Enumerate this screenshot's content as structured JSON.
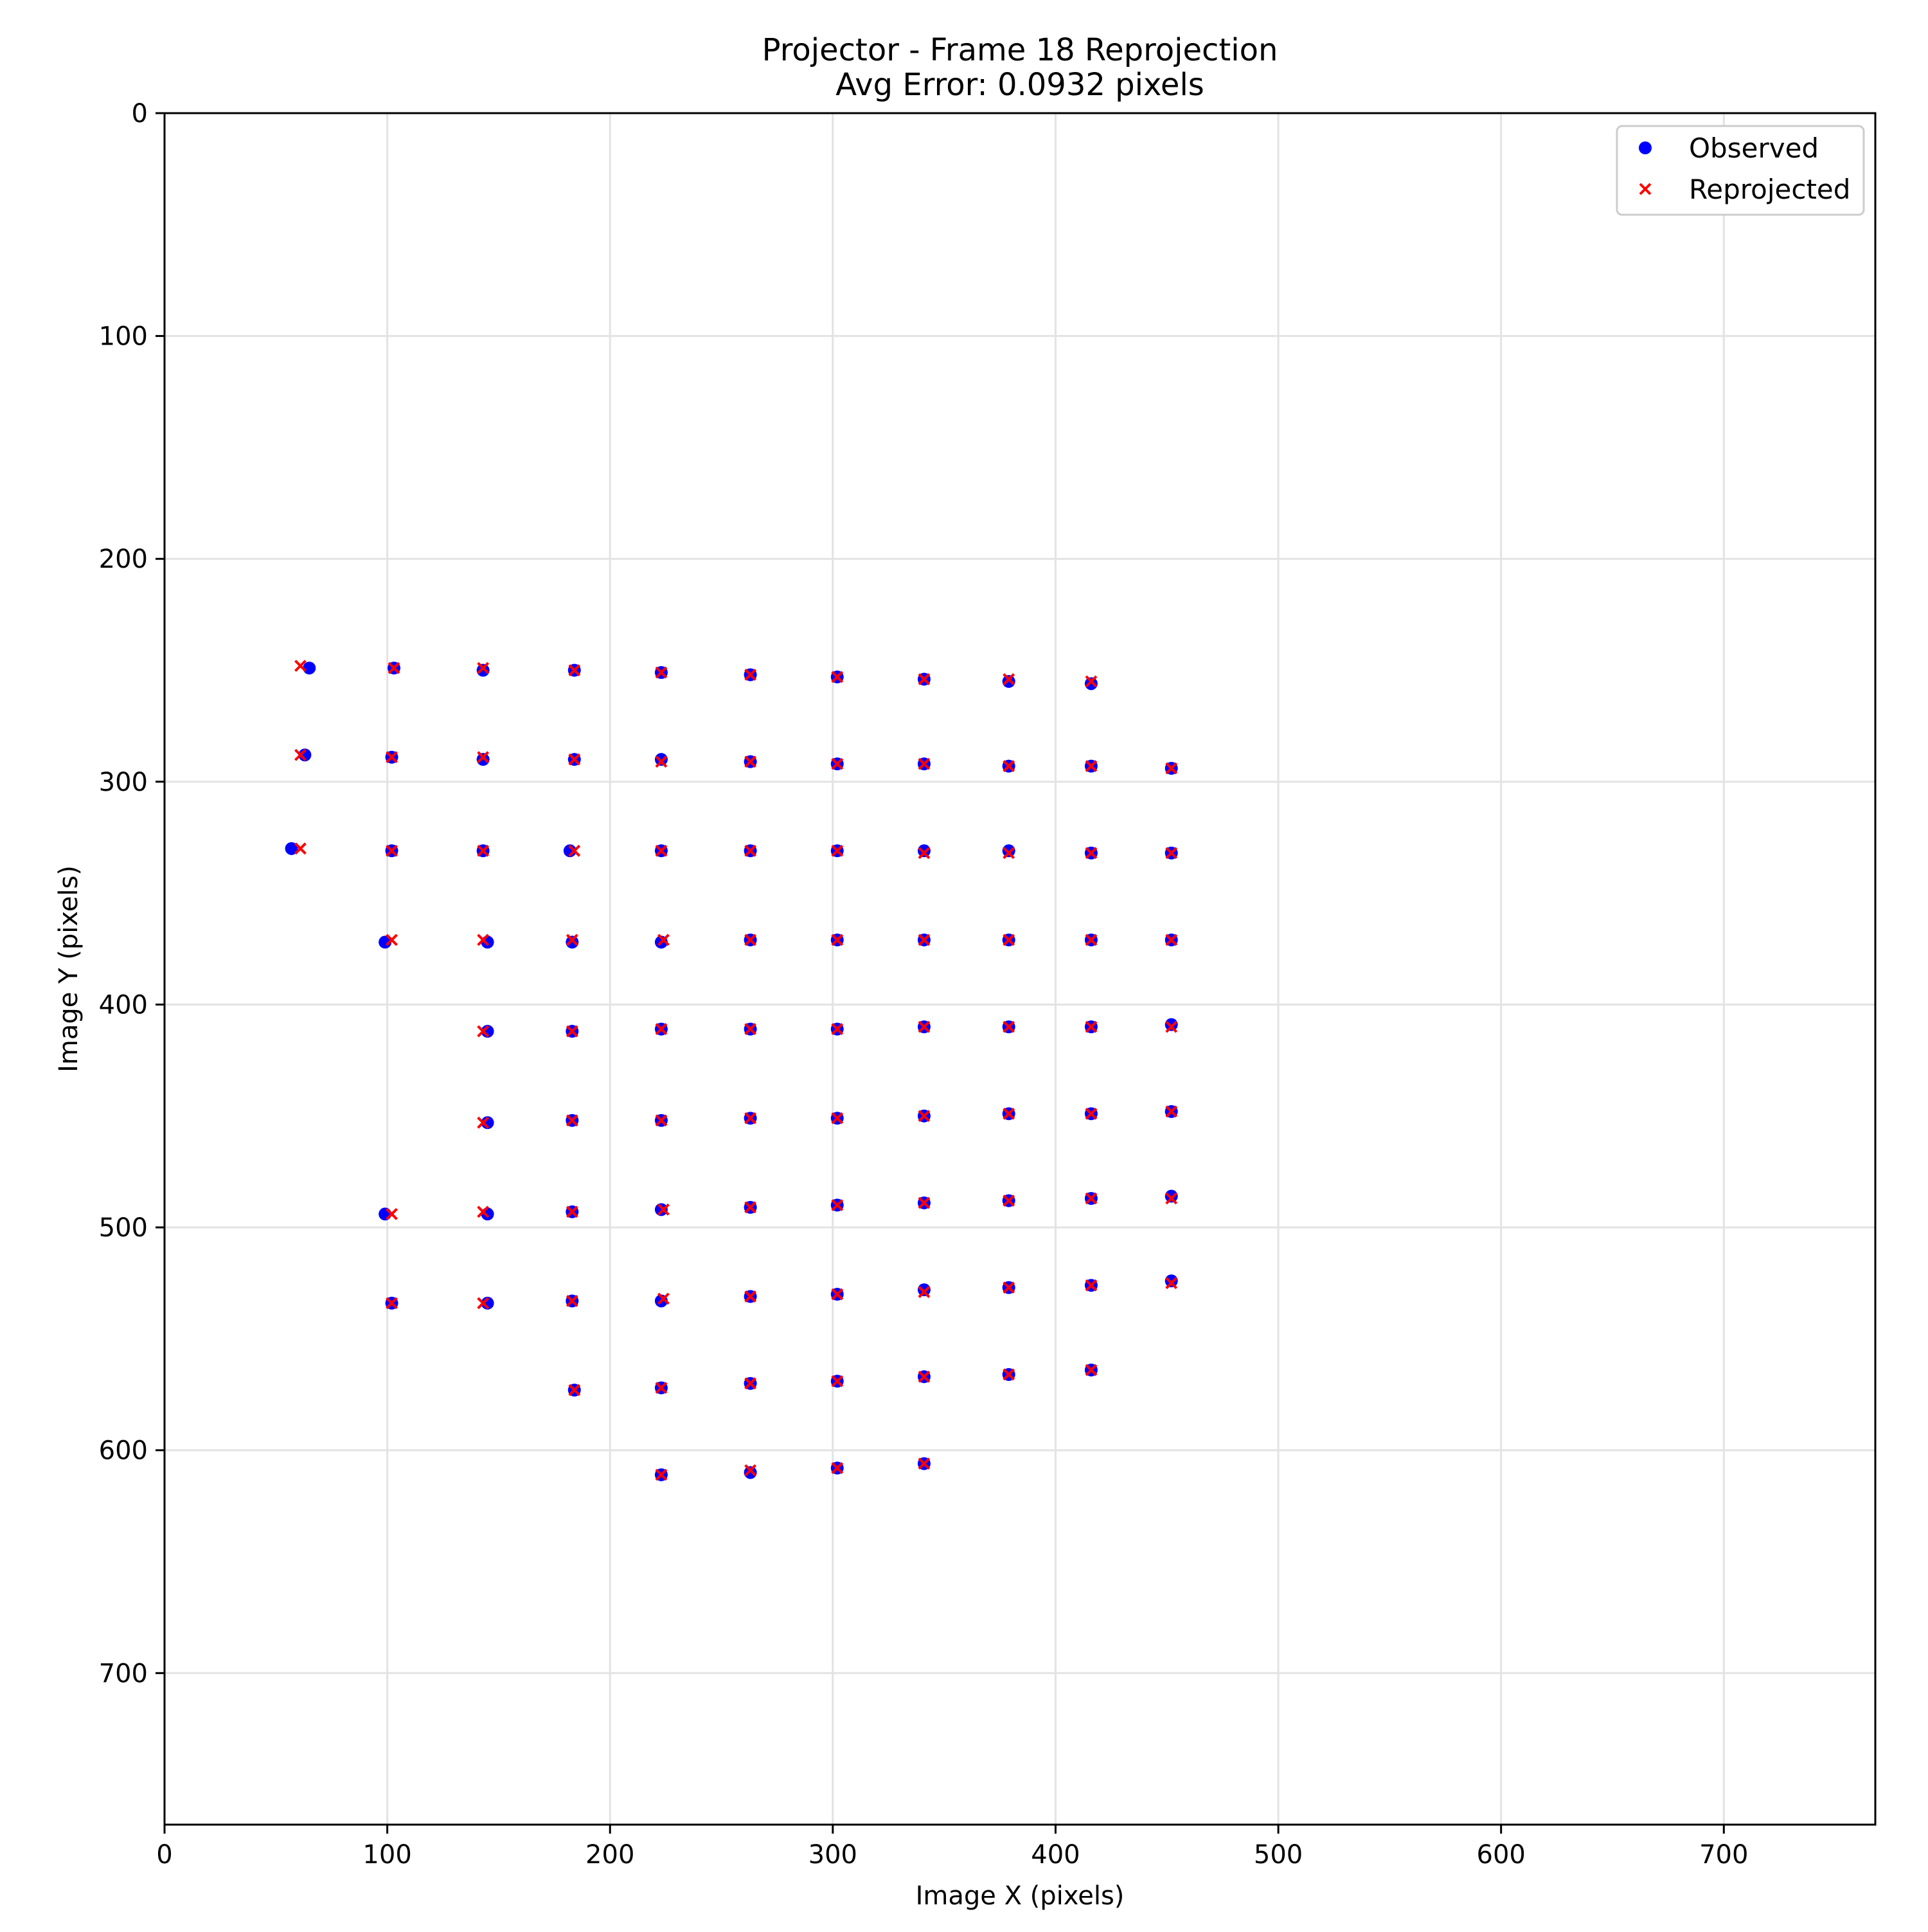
{
  "chart_data": {
    "type": "scatter",
    "title": "Projector - Frame 18 Reprojection",
    "subtitle": "Avg Error: 0.0932 pixels",
    "xlabel": "Image X (pixels)",
    "ylabel": "Image Y (pixels)",
    "xlim": [
      0,
      768
    ],
    "ylim": [
      768,
      0
    ],
    "y_axis_inverted": true,
    "grid": true,
    "legend_position": "top-right",
    "xticks": [
      0,
      100,
      200,
      300,
      400,
      500,
      600,
      700
    ],
    "yticks": [
      0,
      100,
      200,
      300,
      400,
      500,
      600,
      700
    ],
    "xtick_labels": [
      "0",
      "100",
      "200",
      "300",
      "400",
      "500",
      "600",
      "700"
    ],
    "ytick_labels": [
      "0",
      "100",
      "200",
      "300",
      "400",
      "500",
      "600",
      "700"
    ],
    "series": [
      {
        "name": "Observed",
        "color": "#0000ff",
        "marker": "circle",
        "points": [
          [
            65,
            249
          ],
          [
            103,
            249
          ],
          [
            143,
            250
          ],
          [
            184,
            250
          ],
          [
            223,
            251
          ],
          [
            263,
            252
          ],
          [
            302,
            253
          ],
          [
            341,
            254
          ],
          [
            379,
            255
          ],
          [
            416,
            256
          ],
          [
            63,
            288
          ],
          [
            102,
            289
          ],
          [
            143,
            290
          ],
          [
            184,
            290
          ],
          [
            223,
            290
          ],
          [
            263,
            291
          ],
          [
            302,
            292
          ],
          [
            341,
            292
          ],
          [
            379,
            293
          ],
          [
            416,
            293
          ],
          [
            452,
            294
          ],
          [
            57,
            330
          ],
          [
            102,
            331
          ],
          [
            143,
            331
          ],
          [
            182,
            331
          ],
          [
            223,
            331
          ],
          [
            263,
            331
          ],
          [
            302,
            331
          ],
          [
            341,
            331
          ],
          [
            379,
            331
          ],
          [
            416,
            332
          ],
          [
            452,
            332
          ],
          [
            99,
            372
          ],
          [
            145,
            372
          ],
          [
            183,
            372
          ],
          [
            223,
            372
          ],
          [
            263,
            371
          ],
          [
            302,
            371
          ],
          [
            341,
            371
          ],
          [
            379,
            371
          ],
          [
            416,
            371
          ],
          [
            452,
            371
          ],
          [
            145,
            412
          ],
          [
            183,
            412
          ],
          [
            223,
            411
          ],
          [
            263,
            411
          ],
          [
            302,
            411
          ],
          [
            341,
            410
          ],
          [
            379,
            410
          ],
          [
            416,
            410
          ],
          [
            452,
            409
          ],
          [
            145,
            453
          ],
          [
            183,
            452
          ],
          [
            223,
            452
          ],
          [
            263,
            451
          ],
          [
            302,
            451
          ],
          [
            341,
            450
          ],
          [
            379,
            449
          ],
          [
            416,
            449
          ],
          [
            452,
            448
          ],
          [
            99,
            494
          ],
          [
            145,
            494
          ],
          [
            183,
            493
          ],
          [
            223,
            492
          ],
          [
            263,
            491
          ],
          [
            302,
            490
          ],
          [
            341,
            489
          ],
          [
            379,
            488
          ],
          [
            416,
            487
          ],
          [
            452,
            486
          ],
          [
            102,
            534
          ],
          [
            145,
            534
          ],
          [
            183,
            533
          ],
          [
            223,
            533
          ],
          [
            263,
            531
          ],
          [
            302,
            530
          ],
          [
            341,
            528
          ],
          [
            379,
            527
          ],
          [
            416,
            526
          ],
          [
            452,
            524
          ],
          [
            184,
            573
          ],
          [
            223,
            572
          ],
          [
            263,
            570
          ],
          [
            302,
            569
          ],
          [
            341,
            567
          ],
          [
            379,
            566
          ],
          [
            416,
            564
          ],
          [
            223,
            611
          ],
          [
            263,
            610
          ],
          [
            302,
            608
          ],
          [
            341,
            606
          ]
        ]
      },
      {
        "name": "Reprojected",
        "color": "#ff0000",
        "marker": "x",
        "points": [
          [
            61,
            248
          ],
          [
            103,
            249
          ],
          [
            143,
            249
          ],
          [
            184,
            250
          ],
          [
            223,
            251
          ],
          [
            263,
            252
          ],
          [
            302,
            253
          ],
          [
            341,
            254
          ],
          [
            379,
            254
          ],
          [
            416,
            255
          ],
          [
            61,
            288
          ],
          [
            102,
            289
          ],
          [
            143,
            289
          ],
          [
            184,
            290
          ],
          [
            223,
            291
          ],
          [
            263,
            291
          ],
          [
            302,
            292
          ],
          [
            341,
            292
          ],
          [
            379,
            293
          ],
          [
            416,
            293
          ],
          [
            452,
            294
          ],
          [
            61,
            330
          ],
          [
            102,
            331
          ],
          [
            143,
            331
          ],
          [
            184,
            331
          ],
          [
            223,
            331
          ],
          [
            263,
            331
          ],
          [
            302,
            331
          ],
          [
            341,
            332
          ],
          [
            379,
            332
          ],
          [
            416,
            332
          ],
          [
            452,
            332
          ],
          [
            102,
            371
          ],
          [
            143,
            371
          ],
          [
            183,
            371
          ],
          [
            224,
            371
          ],
          [
            263,
            371
          ],
          [
            302,
            371
          ],
          [
            341,
            371
          ],
          [
            379,
            371
          ],
          [
            416,
            371
          ],
          [
            452,
            371
          ],
          [
            143,
            412
          ],
          [
            183,
            412
          ],
          [
            223,
            411
          ],
          [
            263,
            411
          ],
          [
            302,
            411
          ],
          [
            341,
            410
          ],
          [
            379,
            410
          ],
          [
            416,
            410
          ],
          [
            452,
            410
          ],
          [
            143,
            453
          ],
          [
            183,
            452
          ],
          [
            223,
            452
          ],
          [
            263,
            451
          ],
          [
            302,
            451
          ],
          [
            341,
            450
          ],
          [
            379,
            449
          ],
          [
            416,
            449
          ],
          [
            452,
            448
          ],
          [
            102,
            494
          ],
          [
            143,
            493
          ],
          [
            183,
            493
          ],
          [
            224,
            492
          ],
          [
            263,
            491
          ],
          [
            302,
            490
          ],
          [
            341,
            489
          ],
          [
            379,
            488
          ],
          [
            416,
            487
          ],
          [
            452,
            487
          ],
          [
            102,
            534
          ],
          [
            143,
            534
          ],
          [
            183,
            533
          ],
          [
            224,
            532
          ],
          [
            263,
            531
          ],
          [
            302,
            530
          ],
          [
            341,
            529
          ],
          [
            379,
            527
          ],
          [
            416,
            526
          ],
          [
            452,
            525
          ],
          [
            184,
            573
          ],
          [
            223,
            572
          ],
          [
            263,
            570
          ],
          [
            302,
            569
          ],
          [
            341,
            567
          ],
          [
            379,
            566
          ],
          [
            416,
            564
          ],
          [
            223,
            611
          ],
          [
            263,
            609
          ],
          [
            302,
            608
          ],
          [
            341,
            606
          ]
        ]
      }
    ]
  }
}
